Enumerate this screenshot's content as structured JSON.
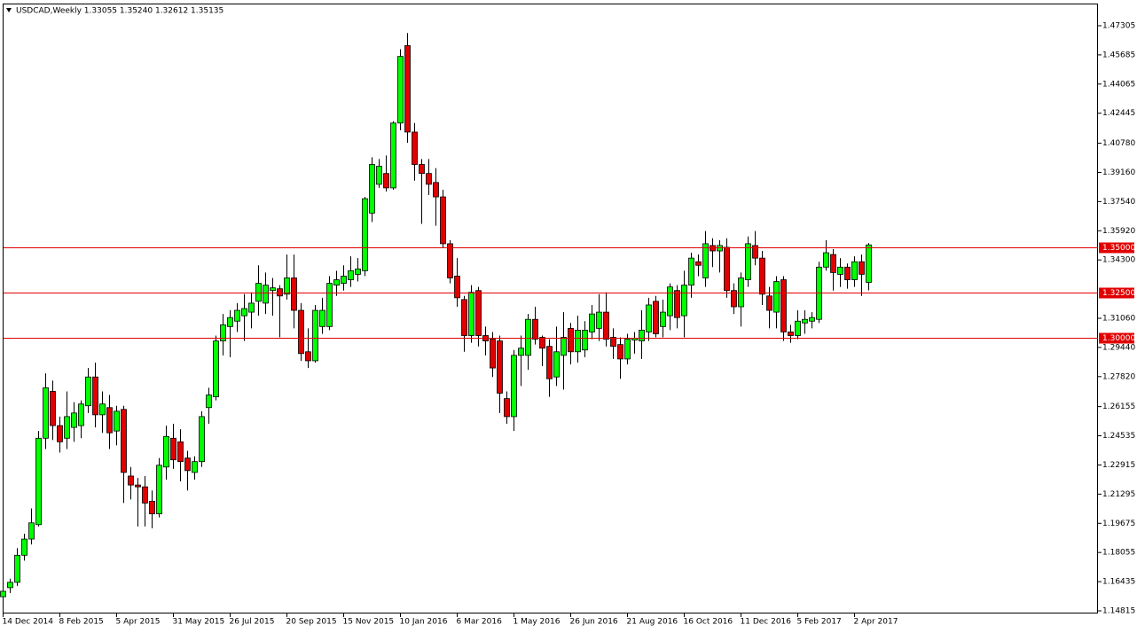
{
  "chart_data": {
    "type": "candlestick",
    "title": "USDCAD,Weekly  1.33055 1.35240 1.32612 1.35135",
    "up_color": "#00ff00",
    "down_color": "#e00000",
    "ylim": [
      1.14667,
      1.48536
    ],
    "yticks": [
      1.14815,
      1.16435,
      1.18055,
      1.19675,
      1.21295,
      1.22915,
      1.24535,
      1.26155,
      {
        "value": 1.2782,
        "label": "1.27820"
      },
      {
        "value": 1.2944,
        "label": "1.29440"
      },
      {
        "value": 1.3106,
        "label": "1.31060"
      },
      {
        "value": 1.343,
        "label": "1.34300"
      },
      {
        "value": 1.3592,
        "label": "1.35920"
      },
      {
        "value": 1.3754,
        "label": "1.37540"
      },
      {
        "value": 1.3916,
        "label": "1.39160"
      },
      {
        "value": 1.4078,
        "label": "1.40780"
      },
      1.42445,
      1.44065,
      1.45685,
      1.47305
    ],
    "levels": [
      {
        "value": 1.35,
        "label": "1.35000",
        "color": "#e00000"
      },
      {
        "value": 1.325,
        "label": "1.32500",
        "color": "#e00000"
      },
      {
        "value": 1.3,
        "label": "1.30000",
        "color": "#e00000"
      }
    ],
    "categories": [
      "14 Dec 2014",
      null,
      null,
      null,
      null,
      null,
      null,
      null,
      "8 Feb 2015",
      null,
      null,
      null,
      null,
      null,
      null,
      null,
      "5 Apr 2015",
      null,
      null,
      null,
      null,
      null,
      null,
      null,
      "31 May 2015",
      null,
      null,
      null,
      null,
      null,
      null,
      null,
      "26 Jul 2015",
      null,
      null,
      null,
      null,
      null,
      null,
      null,
      "20 Sep 2015",
      null,
      null,
      null,
      null,
      null,
      null,
      null,
      "15 Nov 2015",
      null,
      null,
      null,
      null,
      null,
      null,
      null,
      "10 Jan 2016",
      null,
      null,
      null,
      null,
      null,
      null,
      null,
      "6 Mar 2016",
      null,
      null,
      null,
      null,
      null,
      null,
      null,
      "1 May 2016",
      null,
      null,
      null,
      null,
      null,
      null,
      null,
      "26 Jun 2016",
      null,
      null,
      null,
      null,
      null,
      null,
      null,
      "21 Aug 2016",
      null,
      null,
      null,
      null,
      null,
      null,
      null,
      "16 Oct 2016",
      null,
      null,
      null,
      null,
      null,
      null,
      null,
      "11 Dec 2016",
      null,
      null,
      null,
      null,
      null,
      null,
      null,
      "5 Feb 2017",
      null,
      null,
      null,
      null,
      null,
      null,
      null,
      "2 Apr 2017",
      null,
      null
    ],
    "open": [
      1.156,
      1.161,
      1.164,
      1.179,
      1.188,
      1.196,
      1.244,
      1.27,
      1.251,
      1.244,
      1.25,
      1.251,
      1.262,
      1.278,
      1.257,
      1.261,
      1.248,
      1.26,
      1.223,
      1.218,
      1.217,
      1.209,
      1.202,
      1.228,
      1.244,
      1.242,
      1.233,
      1.225,
      1.231,
      1.261,
      1.267,
      1.298,
      1.306,
      1.309,
      1.312,
      1.314,
      1.32,
      1.319,
      1.326,
      1.327,
      1.324,
      1.333,
      1.315,
      1.292,
      1.287,
      1.306,
      1.306,
      1.329,
      1.33,
      1.332,
      1.335,
      1.337,
      1.369,
      1.385,
      1.391,
      1.383,
      1.419,
      1.462,
      1.414,
      1.396,
      1.391,
      1.386,
      1.378,
      1.352,
      1.334,
      1.321,
      1.301,
      1.326,
      1.301,
      1.299,
      1.298,
      1.266,
      1.256,
      1.29,
      1.29,
      1.31,
      1.3,
      1.295,
      1.278,
      1.29,
      1.305,
      1.292,
      1.293,
      1.303,
      1.305,
      1.314,
      1.3,
      1.296,
      1.288,
      1.2985,
      1.298,
      1.303,
      1.32,
      1.306,
      1.312,
      1.326,
      1.312,
      1.329,
      1.342,
      1.333,
      1.351,
      1.348,
      1.35,
      1.326,
      1.317,
      1.332,
      1.351,
      1.344,
      1.323,
      1.314,
      1.332,
      1.303,
      1.301,
      1.308,
      1.309,
      1.31,
      1.339,
      1.346,
      1.335,
      1.339,
      1.332,
      1.342,
      1.33055
    ],
    "high": [
      1.164,
      1.166,
      1.183,
      1.191,
      1.205,
      1.248,
      1.28,
      1.276,
      1.256,
      1.27,
      1.264,
      1.265,
      1.283,
      1.286,
      1.27,
      1.268,
      1.262,
      1.262,
      1.228,
      1.222,
      1.223,
      1.215,
      1.233,
      1.251,
      1.252,
      1.249,
      1.237,
      1.234,
      1.259,
      1.272,
      1.301,
      1.313,
      1.315,
      1.319,
      1.324,
      1.325,
      1.34,
      1.336,
      1.333,
      1.329,
      1.346,
      1.346,
      1.319,
      1.305,
      1.318,
      1.322,
      1.334,
      1.337,
      1.34,
      1.345,
      1.344,
      1.378,
      1.4,
      1.399,
      1.401,
      1.42,
      1.46,
      1.469,
      1.419,
      1.399,
      1.399,
      1.394,
      1.382,
      1.354,
      1.344,
      1.323,
      1.329,
      1.328,
      1.306,
      1.303,
      1.301,
      1.27,
      1.293,
      1.301,
      1.313,
      1.317,
      1.301,
      1.299,
      1.306,
      1.314,
      1.308,
      1.312,
      1.309,
      1.318,
      1.324,
      1.325,
      1.305,
      1.3,
      1.302,
      1.303,
      1.315,
      1.322,
      1.323,
      1.321,
      1.33,
      1.329,
      1.337,
      1.347,
      1.346,
      1.359,
      1.355,
      1.354,
      1.355,
      1.33,
      1.336,
      1.356,
      1.359,
      1.348,
      1.328,
      1.334,
      1.334,
      1.307,
      1.315,
      1.315,
      1.314,
      1.342,
      1.354,
      1.349,
      1.344,
      1.341,
      1.345,
      1.346,
      1.3524
    ],
    "low": [
      1.15,
      1.158,
      1.162,
      1.176,
      1.185,
      1.195,
      1.238,
      1.243,
      1.236,
      1.238,
      1.242,
      1.244,
      1.258,
      1.25,
      1.247,
      1.238,
      1.24,
      1.208,
      1.21,
      1.195,
      1.195,
      1.194,
      1.2,
      1.221,
      1.227,
      1.22,
      1.215,
      1.221,
      1.228,
      1.252,
      1.265,
      1.29,
      1.289,
      1.303,
      1.298,
      1.305,
      1.312,
      1.313,
      1.312,
      1.3,
      1.321,
      1.305,
      1.287,
      1.283,
      1.286,
      1.302,
      1.304,
      1.323,
      1.326,
      1.328,
      1.331,
      1.334,
      1.364,
      1.383,
      1.381,
      1.382,
      1.415,
      1.408,
      1.387,
      1.363,
      1.379,
      1.362,
      1.35,
      1.33,
      1.317,
      1.292,
      1.297,
      1.295,
      1.29,
      1.278,
      1.258,
      1.252,
      1.248,
      1.273,
      1.282,
      1.296,
      1.284,
      1.267,
      1.273,
      1.271,
      1.285,
      1.286,
      1.289,
      1.299,
      1.298,
      1.295,
      1.288,
      1.277,
      1.285,
      1.291,
      1.288,
      1.298,
      1.3,
      1.3,
      1.304,
      1.305,
      1.3,
      1.322,
      1.334,
      1.328,
      1.339,
      1.336,
      1.322,
      1.313,
      1.306,
      1.328,
      1.34,
      1.318,
      1.305,
      1.305,
      1.298,
      1.297,
      1.299,
      1.302,
      1.305,
      1.308,
      1.337,
      1.326,
      1.328,
      1.327,
      1.328,
      1.323,
      1.32612
    ],
    "close": [
      1.159,
      1.164,
      1.179,
      1.188,
      1.197,
      1.244,
      1.272,
      1.251,
      1.242,
      1.256,
      1.258,
      1.263,
      1.278,
      1.257,
      1.263,
      1.247,
      1.259,
      1.225,
      1.218,
      1.217,
      1.208,
      1.202,
      1.229,
      1.245,
      1.232,
      1.231,
      1.226,
      1.231,
      1.256,
      1.268,
      1.298,
      1.307,
      1.311,
      1.315,
      1.316,
      1.319,
      1.33,
      1.329,
      1.3275,
      1.323,
      1.333,
      1.315,
      1.291,
      1.287,
      1.315,
      1.315,
      1.33,
      1.332,
      1.334,
      1.337,
      1.338,
      1.377,
      1.396,
      1.395,
      1.383,
      1.419,
      1.456,
      1.414,
      1.396,
      1.391,
      1.385,
      1.378,
      1.352,
      1.333,
      1.322,
      1.301,
      1.325,
      1.301,
      1.298,
      1.283,
      1.269,
      1.256,
      1.29,
      1.294,
      1.31,
      1.299,
      1.294,
      1.277,
      1.292,
      1.3,
      1.292,
      1.304,
      1.304,
      1.313,
      1.314,
      1.299,
      1.295,
      1.288,
      1.299,
      1.2995,
      1.304,
      1.318,
      1.302,
      1.314,
      1.328,
      1.311,
      1.329,
      1.344,
      1.34,
      1.352,
      1.348,
      1.351,
      1.326,
      1.317,
      1.333,
      1.352,
      1.344,
      1.324,
      1.315,
      1.331,
      1.303,
      1.301,
      1.309,
      1.31,
      1.311,
      1.339,
      1.347,
      1.336,
      1.339,
      1.332,
      1.342,
      1.335,
      1.35135
    ]
  }
}
